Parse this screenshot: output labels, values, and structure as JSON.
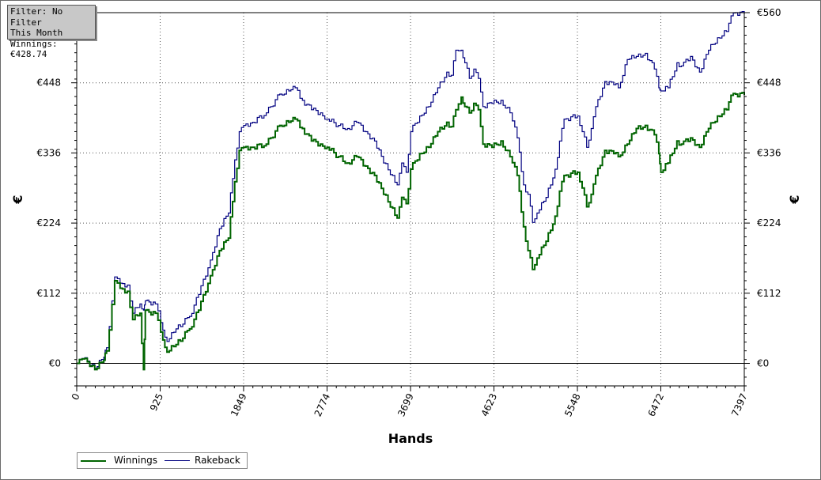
{
  "info_box": {
    "filter_line": "Filter: No Filter",
    "period_line": "This Month",
    "winnings_line": "Winnings: €428.74"
  },
  "colors": {
    "winnings": "#006400",
    "rakeback": "#000080",
    "grid": "#555555",
    "axis": "#000000"
  },
  "chart_data": {
    "type": "line",
    "title": "",
    "xlabel": "Hands",
    "ylabel": "€",
    "ylabel_right": "€",
    "xlim": [
      0,
      7397
    ],
    "ylim": [
      -36,
      560
    ],
    "x_ticks": [
      0,
      925,
      1849,
      2774,
      3699,
      4623,
      5548,
      6472,
      7397
    ],
    "x_tick_labels": [
      "0",
      "925",
      "1849",
      "2774",
      "3699",
      "4623",
      "5548",
      "6472",
      "7397"
    ],
    "y_ticks": [
      0,
      112,
      224,
      336,
      448,
      560
    ],
    "y_tick_labels": [
      "€0",
      "€112",
      "€224",
      "€336",
      "€448",
      "€560"
    ],
    "grid": true,
    "legend": "bottom-left",
    "series": [
      {
        "name": "Winnings",
        "x": [
          0,
          90,
          200,
          300,
          330,
          420,
          480,
          560,
          620,
          700,
          740,
          760,
          800,
          870,
          930,
          1000,
          1100,
          1250,
          1350,
          1480,
          1580,
          1680,
          1750,
          1800,
          1849,
          1950,
          2100,
          2250,
          2350,
          2420,
          2500,
          2600,
          2700,
          2774,
          2900,
          3000,
          3100,
          3200,
          3300,
          3400,
          3500,
          3550,
          3600,
          3650,
          3699,
          3800,
          3900,
          4000,
          4100,
          4150,
          4200,
          4260,
          4300,
          4350,
          4400,
          4450,
          4500,
          4600,
          4700,
          4800,
          4880,
          4950,
          5000,
          5050,
          5100,
          5200,
          5300,
          5350,
          5400,
          5548,
          5600,
          5650,
          5700,
          5750,
          5850,
          5950,
          6000,
          6100,
          6200,
          6300,
          6400,
          6450,
          6472,
          6550,
          6650,
          6700,
          6800,
          6900,
          7000,
          7100,
          7200,
          7250,
          7300,
          7397
        ],
        "y": [
          0,
          8,
          -10,
          5,
          20,
          132,
          120,
          115,
          70,
          80,
          -10,
          85,
          82,
          80,
          50,
          18,
          30,
          55,
          85,
          140,
          180,
          200,
          290,
          340,
          345,
          345,
          350,
          380,
          385,
          390,
          375,
          355,
          350,
          345,
          330,
          320,
          330,
          315,
          300,
          270,
          248,
          232,
          265,
          255,
          310,
          335,
          345,
          370,
          385,
          378,
          405,
          425,
          410,
          400,
          415,
          405,
          350,
          345,
          355,
          330,
          300,
          218,
          180,
          150,
          168,
          195,
          235,
          275,
          300,
          305,
          280,
          250,
          270,
          300,
          340,
          335,
          330,
          350,
          375,
          380,
          365,
          335,
          305,
          320,
          355,
          350,
          360,
          345,
          375,
          395,
          405,
          428,
          430,
          428.74
        ]
      },
      {
        "name": "Rakeback",
        "x": [
          0,
          90,
          200,
          300,
          330,
          420,
          480,
          560,
          620,
          700,
          740,
          760,
          800,
          870,
          930,
          1000,
          1100,
          1250,
          1350,
          1480,
          1580,
          1680,
          1750,
          1800,
          1849,
          1950,
          2100,
          2250,
          2350,
          2420,
          2500,
          2600,
          2700,
          2774,
          2900,
          3000,
          3100,
          3200,
          3300,
          3400,
          3500,
          3550,
          3600,
          3650,
          3699,
          3800,
          3900,
          4000,
          4100,
          4150,
          4200,
          4260,
          4300,
          4350,
          4400,
          4450,
          4500,
          4600,
          4700,
          4800,
          4880,
          4950,
          5000,
          5050,
          5100,
          5200,
          5300,
          5350,
          5400,
          5548,
          5600,
          5650,
          5700,
          5750,
          5850,
          5950,
          6000,
          6100,
          6200,
          6300,
          6400,
          6450,
          6472,
          6550,
          6650,
          6700,
          6800,
          6900,
          7000,
          7100,
          7200,
          7250,
          7300,
          7397
        ],
        "y": [
          0,
          9,
          -8,
          10,
          25,
          138,
          128,
          125,
          80,
          95,
          85,
          100,
          98,
          95,
          65,
          35,
          55,
          75,
          110,
          165,
          215,
          240,
          325,
          370,
          380,
          385,
          400,
          430,
          435,
          440,
          420,
          405,
          400,
          390,
          380,
          375,
          385,
          370,
          355,
          320,
          300,
          285,
          320,
          305,
          370,
          395,
          410,
          440,
          465,
          460,
          500,
          500,
          480,
          455,
          470,
          455,
          410,
          415,
          420,
          400,
          360,
          285,
          270,
          225,
          240,
          265,
          310,
          355,
          390,
          395,
          370,
          345,
          375,
          410,
          450,
          445,
          440,
          485,
          490,
          495,
          470,
          440,
          435,
          440,
          480,
          475,
          490,
          465,
          500,
          520,
          530,
          555,
          560,
          558
        ]
      }
    ]
  },
  "legend": {
    "winnings_label": "Winnings",
    "rakeback_label": "Rakeback"
  }
}
